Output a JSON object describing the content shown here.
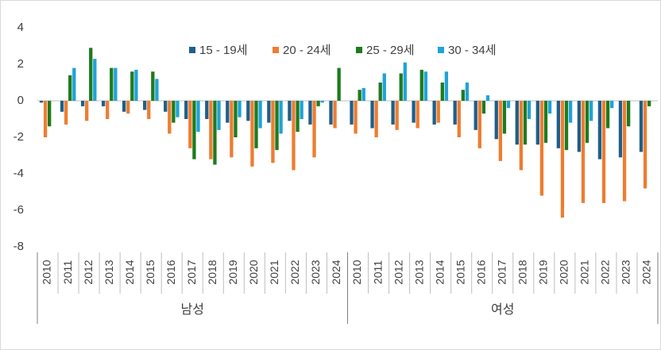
{
  "chart_data": {
    "type": "bar",
    "categories": [
      "2010",
      "2011",
      "2012",
      "2013",
      "2014",
      "2015",
      "2016",
      "2017",
      "2018",
      "2019",
      "2020",
      "2021",
      "2022",
      "2023",
      "2024",
      "2010",
      "2011",
      "2012",
      "2013",
      "2014",
      "2015",
      "2016",
      "2017",
      "2018",
      "2019",
      "2020",
      "2021",
      "2022",
      "2023",
      "2024"
    ],
    "groups": [
      "남성",
      "여성"
    ],
    "series": [
      {
        "name": "15 - 19세",
        "color": "#1f5f8b",
        "values": [
          -0.1,
          -0.6,
          -0.3,
          -0.3,
          -0.6,
          -0.5,
          -0.6,
          -1.0,
          -1.0,
          -1.2,
          -1.1,
          -1.2,
          -1.1,
          -1.3,
          -1.3,
          -1.3,
          -1.5,
          -1.3,
          -1.2,
          -1.3,
          -1.3,
          -1.6,
          -2.1,
          -2.4,
          -2.4,
          -2.6,
          -2.8,
          -3.2,
          -3.1,
          -2.8
        ]
      },
      {
        "name": "20 - 24세",
        "color": "#ed7d31",
        "values": [
          -2.0,
          -1.3,
          -1.1,
          -1.0,
          -0.7,
          -1.0,
          -1.8,
          -2.6,
          -3.2,
          -3.1,
          -3.6,
          -3.4,
          -3.8,
          -3.1,
          -1.5,
          -1.8,
          -2.0,
          -1.6,
          -1.5,
          -1.2,
          -2.0,
          -2.6,
          -3.3,
          -3.8,
          -5.2,
          -6.4,
          -5.6,
          -5.6,
          -5.5,
          -4.8
        ]
      },
      {
        "name": "25 - 29세",
        "color": "#1e7b1e",
        "values": [
          -1.4,
          1.4,
          2.9,
          1.8,
          1.6,
          1.6,
          -1.2,
          -3.2,
          -3.5,
          -2.0,
          -2.6,
          -2.7,
          -1.7,
          -0.3,
          1.8,
          0.6,
          1.0,
          1.5,
          1.7,
          1.0,
          0.6,
          -0.7,
          -1.8,
          -2.4,
          -2.3,
          -2.7,
          -2.3,
          -1.5,
          -1.4,
          -0.3
        ]
      },
      {
        "name": "30 - 34세",
        "color": "#1fa3d9",
        "values": [
          0,
          1.8,
          2.3,
          1.8,
          1.7,
          1.2,
          -0.9,
          -1.7,
          -1.6,
          -0.9,
          -1.5,
          -1.8,
          -1.0,
          -0.1,
          0,
          0.7,
          1.5,
          2.1,
          1.6,
          1.6,
          1.0,
          0.3,
          -0.4,
          -1.0,
          -0.7,
          -1.2,
          -1.1,
          -0.4,
          0,
          0
        ]
      }
    ],
    "ylim": [
      -8,
      4
    ],
    "yticks": [
      -8,
      -6,
      -4,
      -2,
      0,
      2,
      4
    ],
    "legend": "top"
  }
}
